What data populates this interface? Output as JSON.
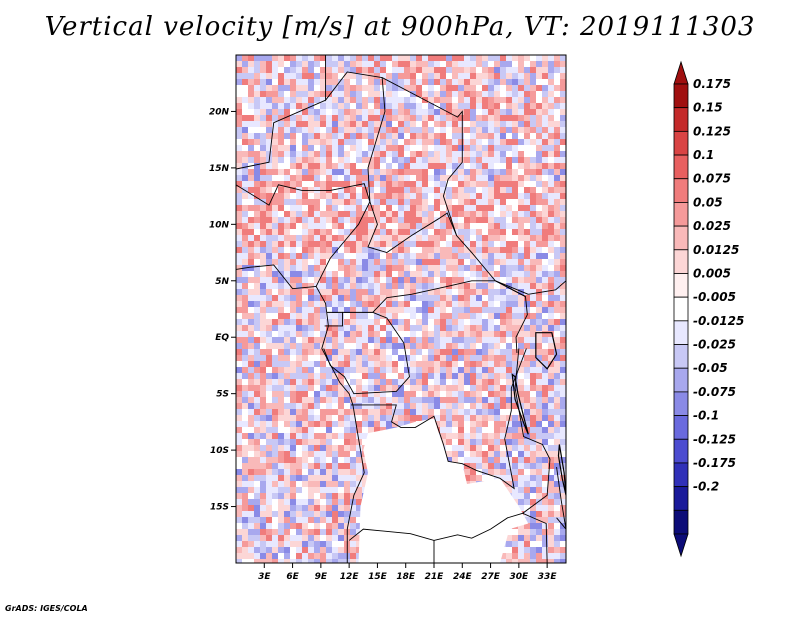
{
  "title": "Vertical velocity [m/s] at 900hPa, VT: 2019111303",
  "credit": "GrADS: IGES/COLA",
  "map": {
    "lon_range": [
      0,
      35
    ],
    "lat_range": [
      -20,
      25
    ],
    "lon_ticks": [
      "3E",
      "6E",
      "9E",
      "12E",
      "15E",
      "18E",
      "21E",
      "24E",
      "27E",
      "30E",
      "33E"
    ],
    "lat_ticks": [
      "20N",
      "15N",
      "10N",
      "5N",
      "EQ",
      "5S",
      "10S",
      "15S"
    ],
    "lat_tick_values": [
      20,
      15,
      10,
      5,
      0,
      -5,
      -10,
      -15
    ],
    "lon_tick_values": [
      3,
      6,
      9,
      12,
      15,
      18,
      21,
      24,
      27,
      30,
      33
    ],
    "masked_region_note": ""
  },
  "colorbar": {
    "labels": [
      "0.175",
      "0.15",
      "0.125",
      "0.1",
      "0.075",
      "0.05",
      "0.025",
      "0.0125",
      "0.005",
      "-0.005",
      "-0.0125",
      "-0.025",
      "-0.05",
      "-0.075",
      "-0.1",
      "-0.125",
      "-0.175",
      "-0.2"
    ],
    "colors": [
      "#a01010",
      "#c42a2a",
      "#d94444",
      "#e86060",
      "#f07c7c",
      "#f59a9a",
      "#f9b9b9",
      "#fcd6d6",
      "#fff0f0",
      "#ffffff",
      "#e8e8ff",
      "#c8c8f5",
      "#a8a8ee",
      "#8a8ae6",
      "#6a6ade",
      "#4c4cd0",
      "#3030b8",
      "#1a1a9a",
      "#0c0c78"
    ],
    "top_color": "#a01010",
    "bottom_color": "#0c0c78"
  }
}
